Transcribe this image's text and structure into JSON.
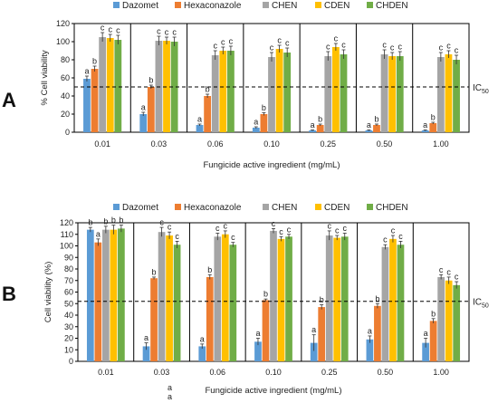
{
  "chart_data": [
    {
      "panel": "A",
      "type": "bar",
      "categories": [
        "0.01",
        "0.03",
        "0.06",
        "0.10",
        "0.25",
        "0.50",
        "1.00"
      ],
      "series": [
        {
          "name": "Dazomet",
          "color": "#5b9bd5",
          "values": [
            59,
            20,
            8,
            5,
            2,
            2,
            2
          ],
          "errors": [
            3,
            2,
            1,
            1,
            0.5,
            0.5,
            0.5
          ],
          "labels": [
            "a",
            "a",
            "a",
            "a",
            "a",
            "a",
            "a"
          ]
        },
        {
          "name": "Hexaconazole",
          "color": "#ed7d31",
          "values": [
            70,
            50,
            40,
            20,
            8,
            8,
            10
          ],
          "errors": [
            3,
            2,
            2,
            1.5,
            1,
            1,
            1
          ],
          "labels": [
            "b",
            "b",
            "b",
            "b",
            "b",
            "b",
            "b"
          ]
        },
        {
          "name": "CHEN",
          "color": "#a5a5a5",
          "values": [
            105,
            101,
            85,
            83,
            84,
            86,
            83
          ],
          "errors": [
            5,
            5,
            5,
            5,
            5,
            5,
            5
          ],
          "labels": [
            "c",
            "c",
            "c",
            "c",
            "c",
            "c",
            "c"
          ]
        },
        {
          "name": "CDEN",
          "color": "#ffc000",
          "values": [
            104,
            101,
            90,
            92,
            94,
            84,
            86
          ],
          "errors": [
            4,
            4,
            4,
            4,
            4,
            4,
            4
          ],
          "labels": [
            "c",
            "c",
            "c",
            "c",
            "c",
            "c",
            "c"
          ]
        },
        {
          "name": "CHDEN",
          "color": "#70ad47",
          "values": [
            102,
            100,
            90,
            88,
            86,
            84,
            80
          ],
          "errors": [
            5,
            5,
            5,
            5,
            5,
            5,
            5
          ],
          "labels": [
            "c",
            "c",
            "c",
            "c",
            "c",
            "c",
            "c"
          ]
        }
      ],
      "ylabel": "% Cell viability",
      "xlabel": "Fungicide active ingredient (mg/mL)",
      "ylim": [
        0,
        120
      ],
      "yticks": [
        "0",
        "20",
        "40",
        "60",
        "80",
        "100",
        "120"
      ],
      "ic50_value": 50,
      "ic50_label": "IC",
      "ic50_sub": "50",
      "legend_position": "top"
    },
    {
      "panel": "B",
      "type": "bar",
      "categories": [
        "0.01",
        "0.03",
        "0.06",
        "0.10",
        "0.25",
        "0.50",
        "1.00"
      ],
      "series": [
        {
          "name": "Dazomet",
          "color": "#5b9bd5",
          "values": [
            114,
            13,
            13,
            17,
            16,
            19,
            16
          ],
          "errors": [
            2,
            3,
            2,
            3,
            7,
            3,
            4
          ],
          "labels": [
            "b",
            "a",
            "a",
            "a",
            "a",
            "a",
            "a"
          ]
        },
        {
          "name": "Hexaconazole",
          "color": "#ed7d31",
          "values": [
            103,
            72,
            73,
            53,
            47,
            48,
            35
          ],
          "errors": [
            3,
            1,
            2,
            1,
            2,
            2,
            2
          ],
          "labels": [
            "a",
            "b",
            "b",
            "b",
            "b",
            "b",
            "b"
          ]
        },
        {
          "name": "CHEN",
          "color": "#a5a5a5",
          "values": [
            114,
            112,
            108,
            113,
            109,
            99,
            73
          ],
          "errors": [
            3,
            4,
            3,
            2,
            4,
            2,
            2
          ],
          "labels": [
            "b",
            "c",
            "c",
            "c",
            "c",
            "c",
            "c"
          ]
        },
        {
          "name": "CDEN",
          "color": "#ffc000",
          "values": [
            114,
            109,
            110,
            106,
            107,
            106,
            70
          ],
          "errors": [
            4,
            3,
            3,
            2,
            2,
            3,
            3
          ],
          "labels": [
            "b",
            "c",
            "c",
            "c",
            "c",
            "c",
            "c"
          ]
        },
        {
          "name": "CHDEN",
          "color": "#70ad47",
          "values": [
            115,
            101,
            101,
            108,
            108,
            101,
            66
          ],
          "errors": [
            3,
            3,
            2,
            2,
            3,
            3,
            3
          ],
          "labels": [
            "b",
            "c",
            "c",
            "c",
            "c",
            "c",
            "c"
          ]
        }
      ],
      "ylabel": "Cell viability (%)",
      "xlabel": "Fungicide active ingredient (mg/mL)",
      "ylim": [
        0,
        120
      ],
      "yticks": [
        "0",
        "10",
        "20",
        "30",
        "40",
        "50",
        "60",
        "70",
        "80",
        "90",
        "100",
        "110",
        "120"
      ],
      "ic50_value": 52,
      "ic50_label": "IC",
      "ic50_sub": "50",
      "extra_letters": [
        "a",
        "a"
      ],
      "legend_position": "top"
    }
  ]
}
